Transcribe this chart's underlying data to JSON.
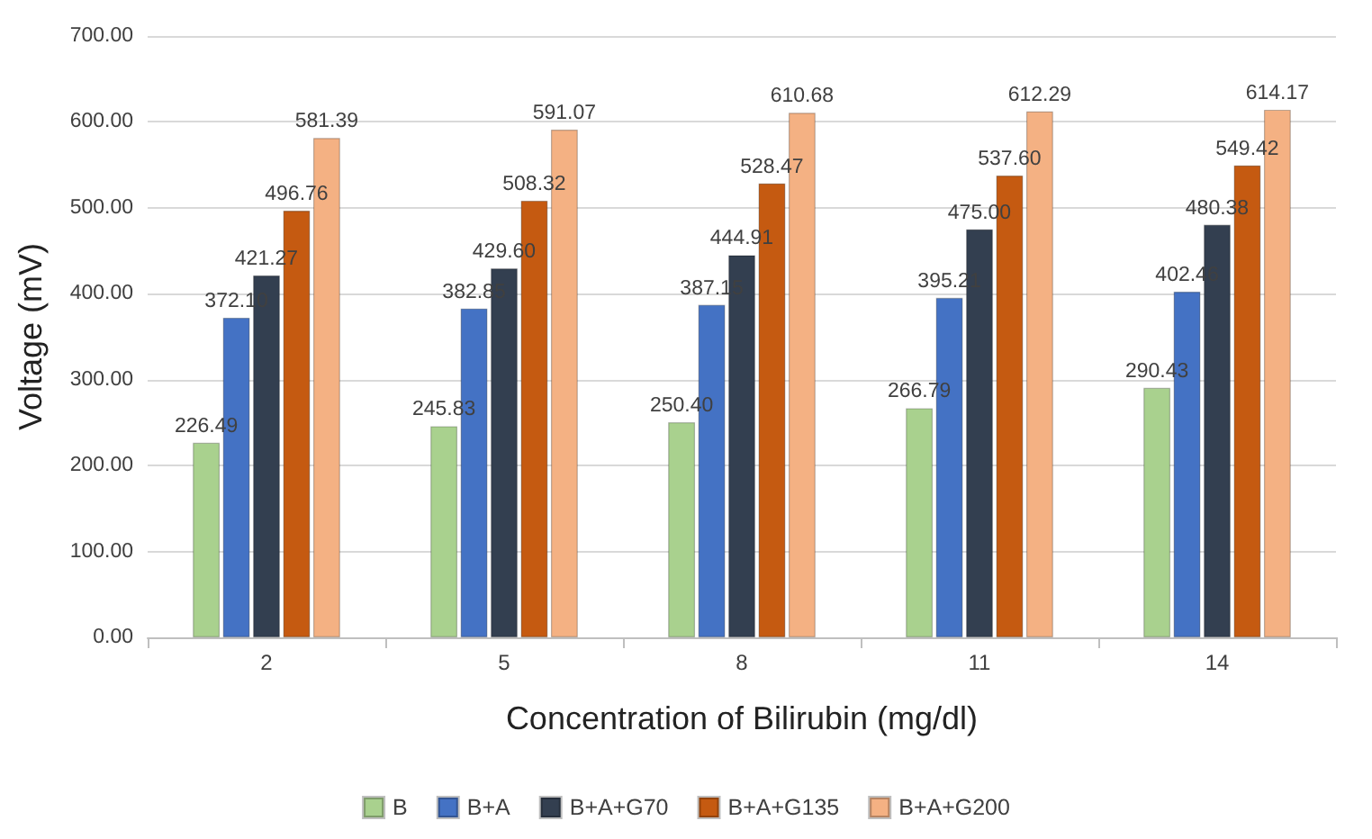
{
  "chart_data": {
    "type": "bar",
    "xlabel": "Concentration of Bilirubin (mg/dl)",
    "ylabel": "Voltage (mV)",
    "categories": [
      "2",
      "5",
      "8",
      "11",
      "14"
    ],
    "series": [
      {
        "name": "B",
        "color": "#a9d18e",
        "values": [
          226.49,
          245.83,
          250.4,
          266.79,
          290.43
        ],
        "value_labels": [
          "226.49",
          "245.83",
          "250.40",
          "266.79",
          "290.43"
        ]
      },
      {
        "name": "B+A",
        "color": "#4472c4",
        "values": [
          372.1,
          382.85,
          387.15,
          395.21,
          402.46
        ],
        "value_labels": [
          "372.10",
          "382.85",
          "387.15",
          "395.21",
          "402.46"
        ]
      },
      {
        "name": "B+A+G70",
        "color": "#333f50",
        "values": [
          421.27,
          429.6,
          444.91,
          475.0,
          480.38
        ],
        "value_labels": [
          "421.27",
          "429.60",
          "444.91",
          "475.00",
          "480.38"
        ]
      },
      {
        "name": "B+A+G135",
        "color": "#c55a11",
        "values": [
          496.76,
          508.32,
          528.47,
          537.6,
          549.42
        ],
        "value_labels": [
          "496.76",
          "508.32",
          "528.47",
          "537.60",
          "549.42"
        ]
      },
      {
        "name": "B+A+G200",
        "color": "#f4b183",
        "values": [
          581.39,
          591.07,
          610.68,
          612.29,
          614.17
        ],
        "value_labels": [
          "581.39",
          "591.07",
          "610.68",
          "612.29",
          "614.17"
        ]
      }
    ],
    "ylim": [
      0,
      700
    ],
    "yticks": [
      {
        "value": 0,
        "label": "0.00"
      },
      {
        "value": 100,
        "label": "100.00"
      },
      {
        "value": 200,
        "label": "200.00"
      },
      {
        "value": 300,
        "label": "300.00"
      },
      {
        "value": 400,
        "label": "400.00"
      },
      {
        "value": 500,
        "label": "500.00"
      },
      {
        "value": 600,
        "label": "600.00"
      },
      {
        "value": 700,
        "label": "700.00"
      }
    ],
    "grid": "y",
    "legend": "bottom"
  }
}
